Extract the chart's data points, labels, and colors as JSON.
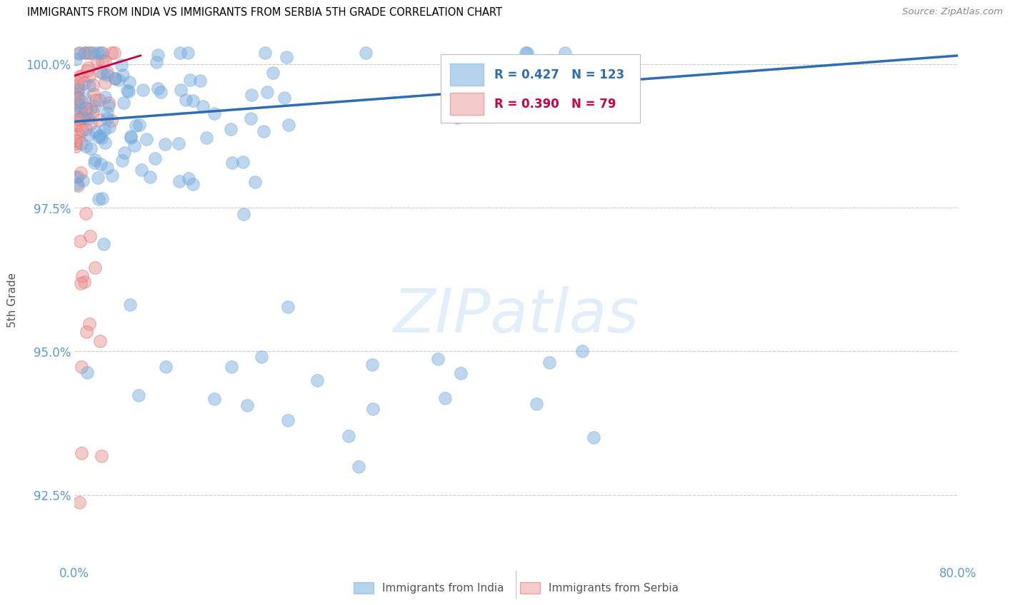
{
  "title": "IMMIGRANTS FROM INDIA VS IMMIGRANTS FROM SERBIA 5TH GRADE CORRELATION CHART",
  "source": "Source: ZipAtlas.com",
  "ylabel": "5th Grade",
  "xlim": [
    0.0,
    0.8
  ],
  "ylim": [
    0.913,
    1.005
  ],
  "y_ticks": [
    0.925,
    0.95,
    0.975,
    1.0
  ],
  "y_tick_labels": [
    "92.5%",
    "95.0%",
    "97.5%",
    "100.0%"
  ],
  "x_tick_positions": [
    0.0,
    0.1,
    0.2,
    0.3,
    0.4,
    0.5,
    0.6,
    0.7,
    0.8
  ],
  "x_tick_labels": [
    "0.0%",
    "",
    "",
    "",
    "",
    "",
    "",
    "",
    "80.0%"
  ],
  "india_color": "#6fa8dc",
  "india_edge": "#6fa8dc",
  "serbia_color": "#ea9999",
  "serbia_edge": "#e06666",
  "india_line_color": "#2e6db4",
  "serbia_line_color": "#cc0044",
  "india_R": 0.427,
  "india_N": 123,
  "serbia_R": 0.39,
  "serbia_N": 79,
  "legend_india": "Immigrants from India",
  "legend_serbia": "Immigrants from Serbia",
  "watermark": "ZIPatlas",
  "background_color": "#ffffff",
  "grid_color": "#cccccc",
  "title_color": "#000000",
  "tick_color": "#5b9bd5",
  "legend_india_R_color": "#2e6db4",
  "legend_serbia_R_color": "#cc0044",
  "india_line_x0": 0.0,
  "india_line_y0": 0.99,
  "india_line_x1": 0.8,
  "india_line_y1": 1.0015,
  "serbia_line_x0": 0.0,
  "serbia_line_y0": 0.998,
  "serbia_line_x1": 0.06,
  "serbia_line_y1": 1.0015
}
